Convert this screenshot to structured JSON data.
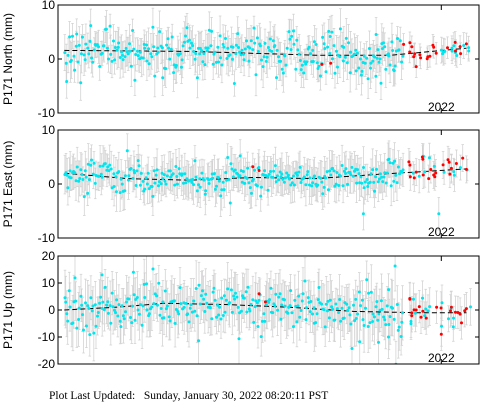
{
  "footer": {
    "label": "Plot Last Updated:",
    "value": "Sunday, January 30, 2022 08:20:11 PST"
  },
  "colors": {
    "final": "#00e5ee",
    "rapid": "#ff0000",
    "error_bar": "#d3d3d3",
    "trend": "#000000"
  },
  "chart_data": [
    {
      "type": "scatter",
      "ylabel": "P171 North (mm)",
      "ylim": [
        -10,
        10
      ],
      "yticks": [
        -10,
        0,
        10
      ],
      "xtick_label": "2022",
      "trend": [
        [
          2019.0,
          1.6
        ],
        [
          2020.0,
          1.4
        ],
        [
          2021.0,
          0.7
        ],
        [
          2021.6,
          0.7
        ],
        [
          2022.2,
          2.0
        ]
      ],
      "final": {
        "count": 300,
        "base_sigma": 2.2,
        "error": 3.0
      },
      "rapid": {
        "count": 30,
        "sigma": 1.0,
        "error": 2.0
      },
      "outliers": [
        [
          2021.52,
          -4.5
        ],
        [
          2021.48,
          -3.2
        ],
        [
          2021.62,
          -2.0
        ]
      ],
      "rapid_points": [
        [
          2021.05,
          -1.0
        ],
        [
          2021.12,
          -0.8
        ],
        [
          2021.7,
          2.7
        ],
        [
          2021.75,
          3.0
        ],
        [
          2021.78,
          0.4
        ],
        [
          2021.8,
          -1.4
        ],
        [
          2021.83,
          0.8
        ],
        [
          2022.15,
          2.3
        ],
        [
          2022.2,
          2.8
        ]
      ]
    },
    {
      "type": "scatter",
      "ylabel": "P171 East (mm)",
      "ylim": [
        -10,
        10
      ],
      "yticks": [
        -10,
        0,
        10
      ],
      "xtick_label": "2022",
      "trend": [
        [
          2019.0,
          2.0
        ],
        [
          2019.5,
          1.0
        ],
        [
          2020.0,
          0.7
        ],
        [
          2020.5,
          1.2
        ],
        [
          2021.0,
          1.0
        ],
        [
          2021.5,
          1.8
        ],
        [
          2022.2,
          2.8
        ]
      ],
      "final": {
        "count": 300,
        "base_sigma": 1.4,
        "error": 3.0
      },
      "rapid": {
        "count": 30,
        "sigma": 1.2,
        "error": 2.5
      },
      "outliers": [
        [
          2021.38,
          -5.5
        ],
        [
          2021.98,
          -5.5
        ],
        [
          2020.4,
          5.2
        ]
      ],
      "rapid_points": [
        [
          2020.5,
          3.2
        ],
        [
          2020.55,
          2.5
        ],
        [
          2021.75,
          3.5
        ],
        [
          2021.8,
          2.2
        ],
        [
          2021.85,
          5.0
        ],
        [
          2021.9,
          1.0
        ],
        [
          2022.12,
          3.8
        ],
        [
          2022.17,
          4.8
        ],
        [
          2022.2,
          2.7
        ]
      ]
    },
    {
      "type": "scatter",
      "ylabel": "P171 Up (mm)",
      "ylim": [
        -20,
        20
      ],
      "yticks": [
        -20,
        -10,
        0,
        10,
        20
      ],
      "xtick_label": "2022",
      "trend": [
        [
          2019.0,
          0.0
        ],
        [
          2019.4,
          1.0
        ],
        [
          2019.8,
          2.5
        ],
        [
          2020.3,
          2.0
        ],
        [
          2020.8,
          1.0
        ],
        [
          2021.3,
          -0.5
        ],
        [
          2021.8,
          -1.0
        ],
        [
          2022.2,
          -1.0
        ]
      ],
      "final": {
        "count": 300,
        "base_sigma": 4.5,
        "error": 8.0
      },
      "rapid": {
        "count": 30,
        "sigma": 3.0,
        "error": 6.0
      },
      "outliers": [
        [
          2019.3,
          13.0
        ],
        [
          2019.55,
          14.0
        ],
        [
          2021.5,
          -12.0
        ],
        [
          2021.58,
          -10.0
        ]
      ],
      "rapid_points": [
        [
          2020.55,
          6.0
        ],
        [
          2020.6,
          3.0
        ],
        [
          2021.75,
          4.0
        ],
        [
          2021.8,
          0.0
        ],
        [
          2021.88,
          -3.0
        ],
        [
          2022.0,
          -9.0
        ],
        [
          2022.08,
          1.0
        ],
        [
          2022.15,
          -1.5
        ],
        [
          2022.2,
          0.5
        ]
      ]
    }
  ],
  "x_axis": {
    "xlim": [
      2018.95,
      2022.3
    ],
    "tick_year": 2022.0
  }
}
